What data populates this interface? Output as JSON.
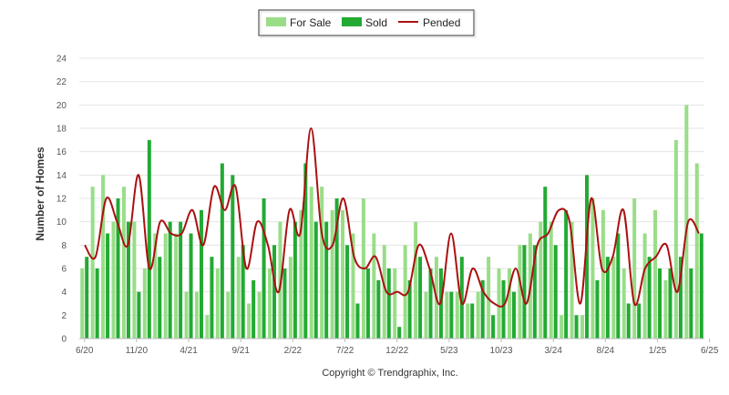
{
  "chart_data": {
    "type": "bar",
    "ylabel": "Number of Homes",
    "ylim": [
      0,
      24
    ],
    "yticks": [
      0,
      2,
      4,
      6,
      8,
      10,
      12,
      14,
      16,
      18,
      20,
      22,
      24
    ],
    "x_tick_labels": [
      {
        "index": 0,
        "label": "6/20"
      },
      {
        "index": 5,
        "label": "11/20"
      },
      {
        "index": 10,
        "label": "4/21"
      },
      {
        "index": 15,
        "label": "9/21"
      },
      {
        "index": 20,
        "label": "2/22"
      },
      {
        "index": 25,
        "label": "7/22"
      },
      {
        "index": 30,
        "label": "12/22"
      },
      {
        "index": 35,
        "label": "5/23"
      },
      {
        "index": 40,
        "label": "10/23"
      },
      {
        "index": 45,
        "label": "3/24"
      },
      {
        "index": 50,
        "label": "8/24"
      },
      {
        "index": 55,
        "label": "1/25"
      },
      {
        "index": 60,
        "label": "6/25"
      }
    ],
    "legend": {
      "placement": "top-center",
      "entries": [
        "For Sale",
        "Sold",
        "Pended"
      ]
    },
    "colors": {
      "for_sale": "#99dd88",
      "sold": "#22aa33",
      "pended": "#aa1111",
      "grid": "#e4e4e4"
    },
    "series": [
      {
        "name": "For Sale",
        "kind": "bar",
        "values": [
          6,
          13,
          14,
          10,
          13,
          10,
          6,
          9,
          9,
          9,
          4,
          4,
          2,
          6,
          4,
          7,
          3,
          4,
          6,
          10,
          7,
          11,
          13,
          13,
          11,
          11,
          9,
          12,
          9,
          8,
          6,
          8,
          10,
          4,
          7,
          4,
          4,
          3,
          4,
          7,
          6,
          6,
          8,
          9,
          10,
          10,
          2,
          10,
          2,
          12,
          11,
          7,
          6,
          12,
          9,
          11,
          5,
          17,
          20,
          15
        ]
      },
      {
        "name": "Sold",
        "kind": "bar",
        "values": [
          7,
          6,
          9,
          12,
          10,
          4,
          17,
          7,
          10,
          10,
          9,
          11,
          7,
          15,
          14,
          8,
          5,
          12,
          8,
          6,
          10,
          15,
          10,
          10,
          12,
          8,
          3,
          6,
          5,
          6,
          1,
          5,
          7,
          6,
          6,
          4,
          7,
          3,
          5,
          2,
          5,
          4,
          8,
          8,
          13,
          8,
          11,
          2,
          14,
          5,
          7,
          9,
          3,
          3,
          7,
          6,
          6,
          7,
          6,
          9
        ]
      },
      {
        "name": "Pended",
        "kind": "line",
        "values": [
          8,
          7,
          12,
          10,
          8,
          14,
          6,
          10,
          9,
          9,
          11,
          8,
          13,
          11,
          13,
          6,
          10,
          8,
          4,
          11,
          9,
          18,
          9,
          8,
          12,
          7,
          6,
          7,
          4,
          4,
          4,
          8,
          6,
          3,
          9,
          3,
          6,
          4,
          3,
          3,
          6,
          3,
          8,
          9,
          11,
          10,
          3,
          12,
          6,
          7,
          11,
          3,
          6,
          7,
          8,
          4,
          10,
          9
        ]
      }
    ],
    "copyright": "Copyright © Trendgraphix, Inc."
  }
}
